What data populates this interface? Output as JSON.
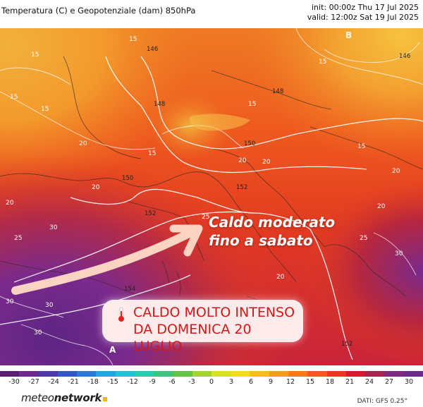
{
  "header": {
    "title": "Temperatura (C) e Geopotenziale (dam) 850hPa",
    "init": "init: 00:00z Thu 17 Jul 2025",
    "valid": "valid: 12:00z Sat 19 Jul 2025"
  },
  "map": {
    "headline_line1": "Caldo moderato",
    "headline_line2": "fino a sabato",
    "alert_line1": "CALDO MOLTO INTENSO",
    "alert_line2": "DA DOMENICA 20 LUGLIO",
    "pressure_high": "B",
    "pressure_low": "A",
    "geopotential_labels": [
      "146",
      "148",
      "148",
      "150",
      "150",
      "152",
      "152",
      "154",
      "146",
      "152"
    ],
    "isotherm_labels": [
      "15",
      "15",
      "15",
      "15",
      "15",
      "15",
      "15",
      "15",
      "20",
      "20",
      "20",
      "20",
      "20",
      "20",
      "20",
      "20",
      "25",
      "25",
      "25",
      "30",
      "30",
      "30",
      "30",
      "30"
    ]
  },
  "colors": {
    "cold": "#e8a14a",
    "mild": "#f26a1f",
    "warm": "#e23b20",
    "hot": "#c7233a",
    "very_hot": "#7a2a8c",
    "arrow": "#fbd3c3",
    "alert_text": "#d21818"
  },
  "scale": {
    "ticks": [
      "-30",
      "-27",
      "-24",
      "-21",
      "-18",
      "-15",
      "-12",
      "-9",
      "-6",
      "-3",
      "0",
      "3",
      "6",
      "9",
      "12",
      "15",
      "18",
      "21",
      "24",
      "27",
      "30"
    ],
    "colors": [
      "#5a1d6f",
      "#6e2a8e",
      "#4a3ba8",
      "#3456c7",
      "#2a7bd8",
      "#2aa0e0",
      "#2bbcd6",
      "#31c9b1",
      "#3bc37f",
      "#64c24a",
      "#a4d13a",
      "#d8df34",
      "#f2da2c",
      "#f7bb2a",
      "#f59a28",
      "#f27a23",
      "#ee5a1f",
      "#e13a1f",
      "#cc2030",
      "#a7244f",
      "#7e2a7f",
      "#6a2a8c"
    ]
  },
  "footer": {
    "brand_prefix": "meteo",
    "brand_suffix": "network",
    "source": "DATI: GFS 0.25°"
  }
}
